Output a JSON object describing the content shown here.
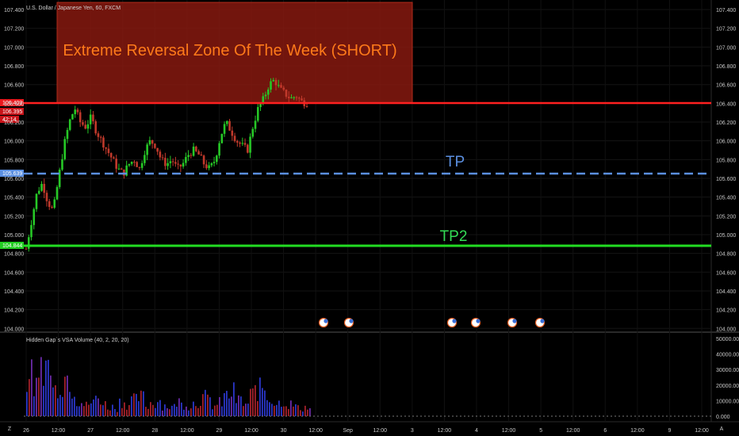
{
  "header": {
    "symbol_title": "U.S. Dollar / Japanese Yen, 60, FXCM",
    "indicator_title": "Hidden Gap`s VSA Volume (40, 2, 20, 20)"
  },
  "annotations": {
    "zone_label": "Extreme Reversal Zone Of The Week (SHORT)",
    "tp_label": "TP",
    "tp2_label": "TP2"
  },
  "price_tags": {
    "resistance": "106.403",
    "last_price": "106.395",
    "countdown": "42:14",
    "tp": "105.639",
    "tp2": "104.844"
  },
  "price_axis_ticks": [
    "107.400",
    "107.200",
    "107.000",
    "106.800",
    "106.600",
    "106.400",
    "106.200",
    "106.000",
    "105.800",
    "105.600",
    "105.400",
    "105.200",
    "105.000",
    "104.800",
    "104.600",
    "104.400",
    "104.200",
    "104.000"
  ],
  "volume_axis_ticks": [
    "50000.000",
    "40000.000",
    "30000.000",
    "20000.000",
    "10000.000",
    "0.000"
  ],
  "time_axis_ticks": [
    "26",
    "12:00",
    "27",
    "12:00",
    "28",
    "12:00",
    "29",
    "12:00",
    "30",
    "12:00",
    "Sep",
    "12:00",
    "3",
    "12:00",
    "4",
    "12:00",
    "5",
    "12:00",
    "6",
    "12:00",
    "9",
    "12:00"
  ],
  "axis_corner_labels": {
    "log": "A",
    "zoom": "Z"
  },
  "colors": {
    "zone_fill": "#8b1a10",
    "resistance_line": "#ff2020",
    "tp_line": "#5b8fe0",
    "tp2_line": "#22dd22",
    "candle_up": "#26c826",
    "candle_down": "#c0392b"
  },
  "chart_data": {
    "type": "candlestick",
    "symbol": "USD/JPY",
    "interval": "60",
    "ylim": [
      103.95,
      107.5
    ],
    "levels": [
      {
        "name": "zone_top",
        "value": 107.45
      },
      {
        "name": "resistance",
        "value": 106.403
      },
      {
        "name": "TP",
        "value": 105.639
      },
      {
        "name": "TP2",
        "value": 104.844
      }
    ],
    "price_path": [
      104.85,
      105.15,
      105.45,
      105.55,
      105.35,
      105.25,
      105.6,
      105.95,
      106.2,
      106.35,
      106.2,
      106.15,
      106.25,
      106.1,
      106.0,
      105.9,
      105.8,
      105.7,
      105.65,
      105.75,
      105.8,
      105.7,
      105.9,
      106.0,
      105.95,
      105.8,
      105.75,
      105.8,
      105.7,
      105.75,
      105.85,
      105.9,
      105.85,
      105.75,
      105.7,
      105.8,
      106.05,
      106.2,
      106.1,
      106.0,
      105.95,
      105.9,
      106.15,
      106.35,
      106.45,
      106.6,
      106.65,
      106.55,
      106.5,
      106.45,
      106.48,
      106.42,
      106.4
    ],
    "volume_profile": [
      30000,
      22000,
      42000,
      38000,
      20000,
      25000,
      30000,
      22000,
      12000,
      8000,
      10000,
      14000,
      9000,
      7000,
      6000,
      11000,
      9000,
      12000,
      14000,
      8000,
      10000,
      12000,
      8000,
      7000,
      11000,
      9000,
      8000,
      10000,
      14000,
      12000,
      8000,
      10000,
      15000,
      18000,
      12000,
      9000,
      16000,
      20000,
      22000,
      14000,
      10000,
      12000,
      9000,
      8000,
      6000,
      7000,
      5000
    ]
  }
}
